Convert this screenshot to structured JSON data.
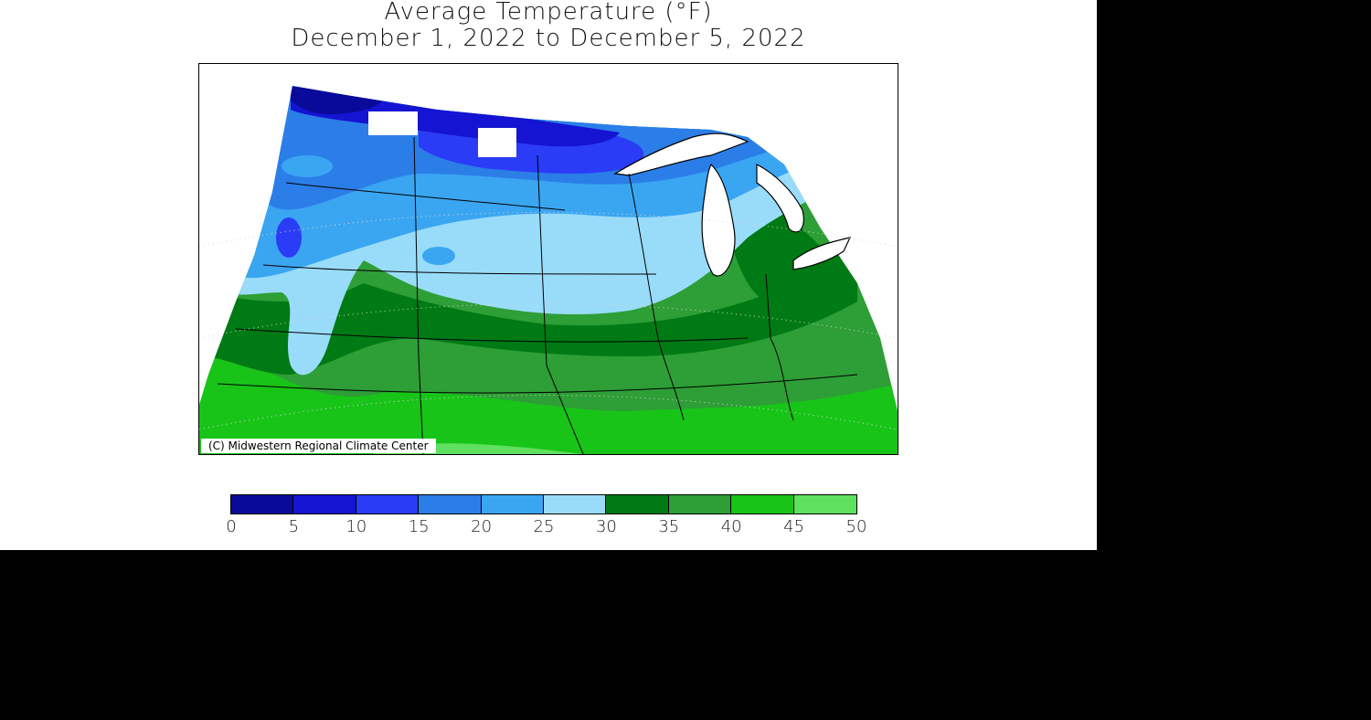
{
  "title": {
    "line1": "Average Temperature (°F)",
    "line2": "December 1, 2022 to December 5, 2022"
  },
  "credit": "(C) Midwestern Regional Climate Center",
  "legend": {
    "ticks": [
      "0",
      "5",
      "10",
      "15",
      "20",
      "25",
      "30",
      "35",
      "40",
      "45",
      "50"
    ],
    "bins": [
      {
        "range": "0-5",
        "color": "#0a0a9a"
      },
      {
        "range": "5-10",
        "color": "#1414d2"
      },
      {
        "range": "10-15",
        "color": "#2a3cf5"
      },
      {
        "range": "15-20",
        "color": "#2b7ee8"
      },
      {
        "range": "20-25",
        "color": "#3aa6f2"
      },
      {
        "range": "25-30",
        "color": "#99dcfa"
      },
      {
        "range": "30-35",
        "color": "#007a14"
      },
      {
        "range": "35-40",
        "color": "#2e9e36"
      },
      {
        "range": "40-45",
        "color": "#18c418"
      },
      {
        "range": "45-50",
        "color": "#5fe05f"
      }
    ]
  },
  "colors": {
    "lake": "#ffffff",
    "boundary": "#000000",
    "graticule": "#d8d8d8"
  }
}
